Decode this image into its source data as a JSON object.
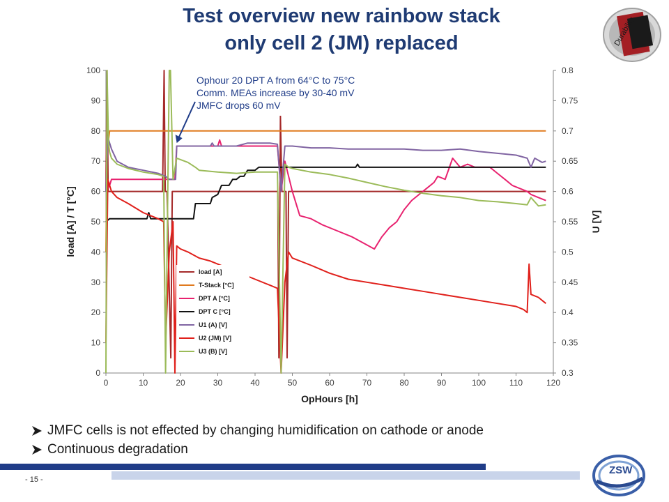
{
  "slide": {
    "title_line1": "Test overview new rainbow stack",
    "title_line2": "only cell 2 (JM) replaced",
    "page_number": "- 15 -",
    "logo_right_text": "Durability",
    "logo_bottom_text": "ZSW",
    "bullets": [
      "JMFC cells is not effected by changing humidification on cathode or anode",
      "Continuous degradation"
    ],
    "colors": {
      "title": "#1f3b73",
      "footer_bar": "#1f3c88",
      "footer_bar_light": "#c9d4ea"
    }
  },
  "chart_data": {
    "type": "line",
    "xlabel": "OpHours [h]",
    "ylabel": "load [A] / T [°C]",
    "y2label": "U [V]",
    "xlim": [
      0,
      120
    ],
    "ylim": [
      0,
      100
    ],
    "y2lim": [
      0.3,
      0.8
    ],
    "xticks": [
      0,
      10,
      20,
      30,
      40,
      50,
      60,
      70,
      80,
      90,
      100,
      110,
      120
    ],
    "yticks": [
      0,
      10,
      20,
      30,
      40,
      50,
      60,
      70,
      80,
      90,
      100
    ],
    "y2ticks": [
      "0.3",
      "0.35",
      "0.4",
      "0.45",
      "0.5",
      "0.55",
      "0.6",
      "0.65",
      "0.7",
      "0.75",
      "0.8"
    ],
    "grid": false,
    "legend_position": "lower-left",
    "annotation": {
      "lines": [
        "Ophour 20 DPT A from 64°C to 75°C",
        "Comm. MEAs increase by  30-40 mV",
        "JMFC drops 60 mV"
      ],
      "arrow_target": [
        19,
        76
      ],
      "text_color": "#1f3c88"
    },
    "series": [
      {
        "name": "load [A]",
        "axis": "left",
        "color": "#a52a2a",
        "x": [
          0,
          0.3,
          0.6,
          1.5,
          15.2,
          15.6,
          15.9,
          16.4,
          17.4,
          17.8,
          18.2,
          18.6,
          46.1,
          46.4,
          46.8,
          47.2,
          48.3,
          48.6,
          49,
          49.5,
          118
        ],
        "y": [
          60,
          100,
          60,
          60,
          60,
          100,
          60,
          60,
          5,
          60,
          60,
          60,
          60,
          5,
          85,
          60,
          60,
          5,
          60,
          60,
          60
        ]
      },
      {
        "name": "T-Stack [°C]",
        "axis": "left",
        "color": "#e07a1e",
        "x": [
          0,
          0.3,
          1,
          1.5,
          118
        ],
        "y": [
          40,
          73,
          80,
          80,
          80
        ]
      },
      {
        "name": "DPT A [°C]",
        "axis": "left",
        "color": "#e8226f",
        "x": [
          0,
          1,
          1.5,
          16,
          17,
          18.5,
          19,
          19.5,
          30,
          30.5,
          31,
          46,
          47,
          48,
          50,
          52,
          55,
          58,
          62,
          66,
          69,
          72,
          74,
          76,
          78,
          80,
          82,
          84,
          86,
          88,
          89,
          91,
          93,
          95,
          97,
          99,
          103,
          105,
          107,
          109,
          111,
          113,
          114,
          116,
          118
        ],
        "y": [
          60,
          62,
          64,
          64,
          64,
          64,
          75,
          75,
          75,
          77,
          75,
          75,
          60,
          70,
          60,
          52,
          51,
          49,
          47,
          45,
          43,
          41,
          45,
          48,
          50,
          54,
          57,
          59,
          61,
          63,
          65,
          64,
          71,
          68,
          69,
          68,
          68,
          66,
          64,
          62,
          61,
          60,
          59,
          58,
          57
        ]
      },
      {
        "name": "DPT C [°C]",
        "axis": "left",
        "color": "#111111",
        "x": [
          0,
          1,
          1.5,
          11,
          11.5,
          12,
          17,
          18,
          23.5,
          24,
          28,
          28.5,
          30,
          31,
          32,
          33,
          34,
          35,
          36,
          37,
          38,
          39,
          40,
          41,
          46,
          47,
          48,
          49,
          50,
          67,
          67.5,
          68,
          118
        ],
        "y": [
          50,
          51,
          51,
          51,
          53,
          51,
          51,
          51,
          51,
          56,
          56,
          58,
          59,
          62,
          62,
          62,
          64,
          64,
          65,
          65,
          67,
          67,
          67,
          68,
          68,
          68,
          68,
          68,
          68,
          68,
          69,
          68,
          68
        ]
      },
      {
        "name": "U1 (A) [V]",
        "axis": "right",
        "color": "#8064a2",
        "x": [
          0,
          0.5,
          1,
          1.5,
          3,
          6,
          10,
          14,
          16,
          17,
          18,
          18.7,
          19,
          22,
          25,
          28,
          28.5,
          29,
          32,
          35,
          38,
          41,
          44,
          46,
          47,
          48,
          50,
          55,
          60,
          65,
          70,
          75,
          80,
          85,
          90,
          95,
          100,
          105,
          110,
          113,
          114,
          115,
          117,
          118
        ],
        "y": [
          0.6,
          0.69,
          0.68,
          0.67,
          0.65,
          0.64,
          0.635,
          0.63,
          0.625,
          0.62,
          0.62,
          0.62,
          0.675,
          0.675,
          0.675,
          0.675,
          0.68,
          0.675,
          0.675,
          0.675,
          0.68,
          0.68,
          0.68,
          0.678,
          0.6,
          0.675,
          0.675,
          0.672,
          0.672,
          0.67,
          0.67,
          0.67,
          0.67,
          0.668,
          0.668,
          0.67,
          0.666,
          0.663,
          0.66,
          0.655,
          0.64,
          0.655,
          0.648,
          0.65
        ]
      },
      {
        "name": "U2 (JM) [V]",
        "axis": "right",
        "color": "#e0201b",
        "x": [
          0,
          0.5,
          1,
          1.5,
          3,
          6,
          10,
          14,
          15.5,
          16,
          17,
          18,
          18.5,
          19,
          20,
          22,
          25,
          28,
          32,
          36,
          40,
          44,
          46,
          47,
          48,
          49,
          50,
          55,
          60,
          65,
          70,
          75,
          80,
          85,
          90,
          95,
          100,
          105,
          110,
          112,
          113,
          113.5,
          114,
          116,
          118
        ],
        "y": [
          0.35,
          0.62,
          0.61,
          0.6,
          0.59,
          0.58,
          0.565,
          0.555,
          0.55,
          0.35,
          0.5,
          0.55,
          0.3,
          0.51,
          0.505,
          0.5,
          0.49,
          0.485,
          0.475,
          0.465,
          0.455,
          0.445,
          0.44,
          0.3,
          0.45,
          0.5,
          0.49,
          0.478,
          0.465,
          0.455,
          0.45,
          0.445,
          0.44,
          0.435,
          0.43,
          0.425,
          0.42,
          0.415,
          0.41,
          0.405,
          0.4,
          0.48,
          0.43,
          0.425,
          0.415
        ]
      },
      {
        "name": "U3 (B) [V]",
        "axis": "right",
        "color": "#9bbb59",
        "x": [
          0,
          0.3,
          0.7,
          1,
          1.5,
          3,
          6,
          10,
          14,
          15.5,
          16,
          17,
          17.3,
          18,
          19,
          22,
          24,
          25,
          30,
          35,
          40,
          45,
          46,
          47,
          48,
          49,
          50,
          55,
          60,
          65,
          70,
          75,
          80,
          85,
          90,
          95,
          100,
          105,
          110,
          113,
          114,
          116,
          118
        ],
        "y": [
          0.3,
          0.8,
          0.68,
          0.665,
          0.655,
          0.645,
          0.638,
          0.632,
          0.628,
          0.625,
          0.3,
          0.8,
          0.8,
          0.62,
          0.655,
          0.648,
          0.64,
          0.635,
          0.632,
          0.63,
          0.632,
          0.632,
          0.632,
          0.3,
          0.645,
          0.64,
          0.638,
          0.632,
          0.628,
          0.622,
          0.615,
          0.608,
          0.602,
          0.597,
          0.593,
          0.59,
          0.585,
          0.583,
          0.58,
          0.578,
          0.59,
          0.576,
          0.578
        ]
      }
    ]
  }
}
